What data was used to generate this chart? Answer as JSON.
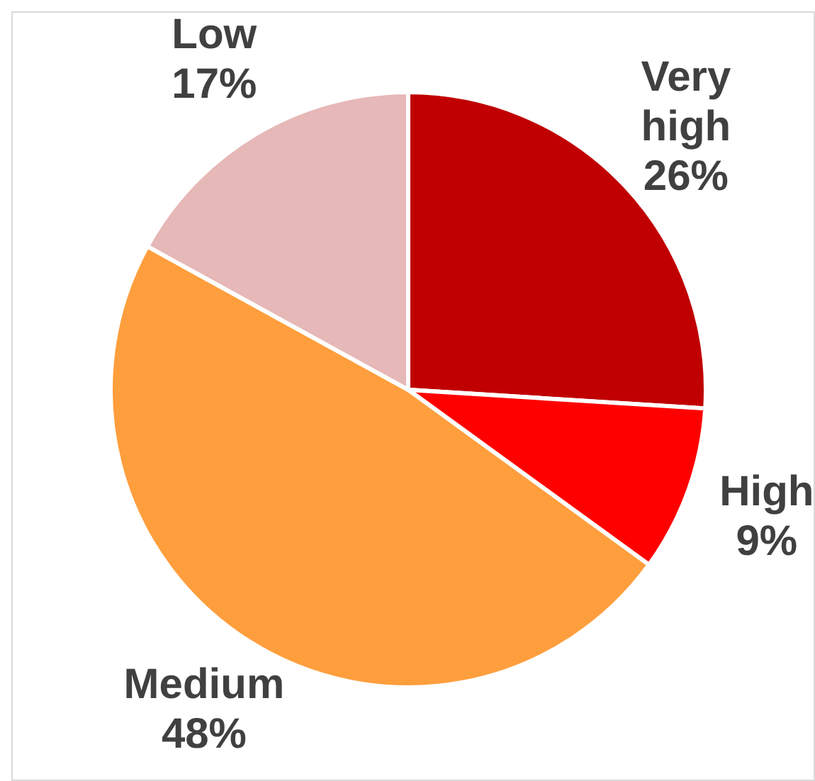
{
  "chart_data": {
    "type": "pie",
    "categories": [
      "Very high",
      "High",
      "Medium",
      "Low"
    ],
    "values": [
      26,
      9,
      48,
      17
    ],
    "value_labels": [
      "26%",
      "9%",
      "48%",
      "17%"
    ],
    "colors": [
      "#c00000",
      "#ff0000",
      "#ff9e3d",
      "#e6b8b7"
    ]
  }
}
